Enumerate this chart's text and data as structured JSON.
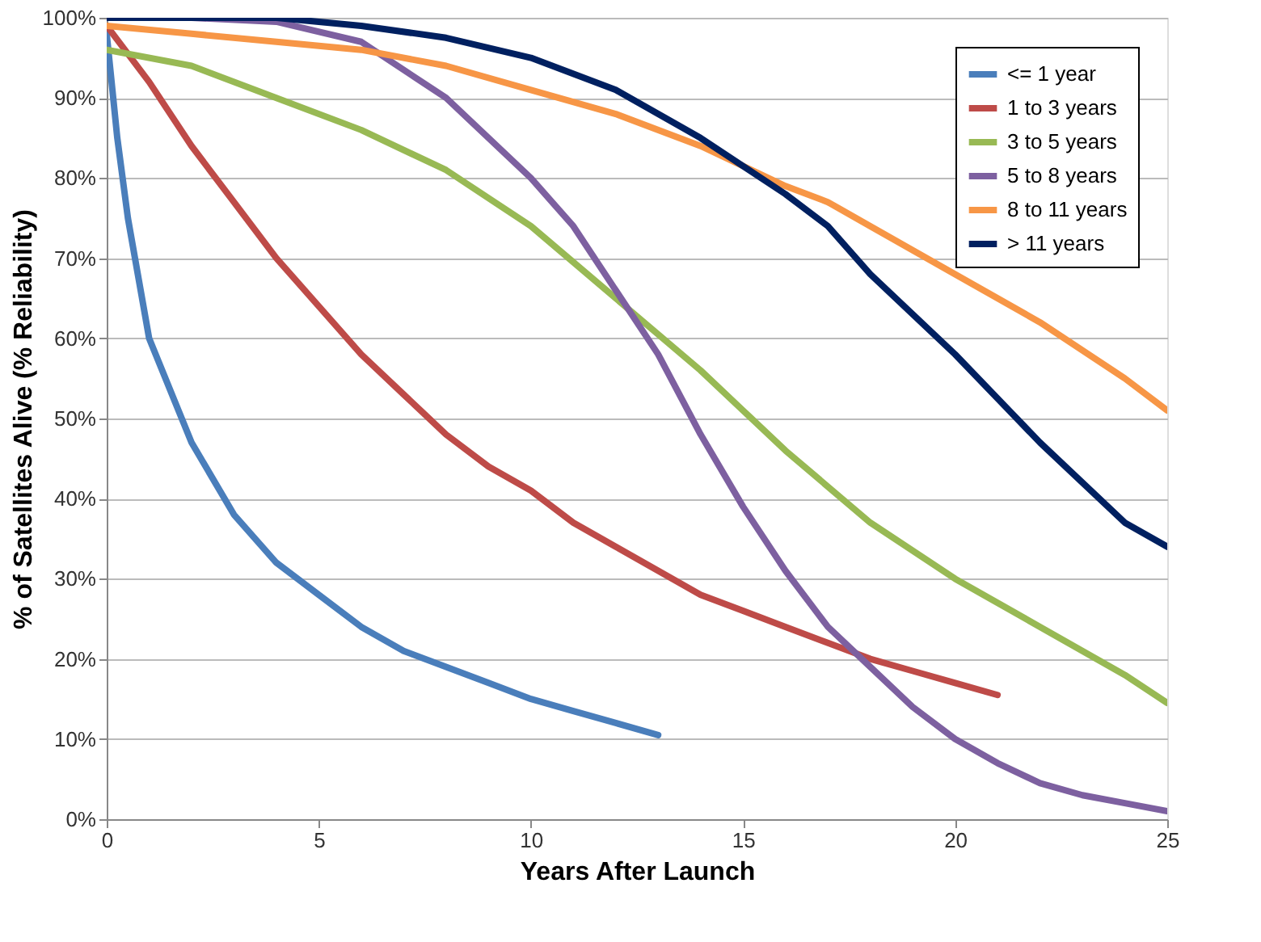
{
  "chart_data": {
    "type": "line",
    "xlabel": "Years After Launch",
    "ylabel": "% of Satellites Alive (% Reliability)",
    "xlim": [
      0,
      25
    ],
    "xticks": [
      0,
      5,
      10,
      15,
      20,
      25
    ],
    "ylim": [
      0,
      100
    ],
    "yticks": [
      {
        "value": 0,
        "label": "0%"
      },
      {
        "value": 10,
        "label": "10%"
      },
      {
        "value": 20,
        "label": "20%"
      },
      {
        "value": 30,
        "label": "30%"
      },
      {
        "value": 40,
        "label": "40%"
      },
      {
        "value": 50,
        "label": "50%"
      },
      {
        "value": 60,
        "label": "60%"
      },
      {
        "value": 70,
        "label": "70%"
      },
      {
        "value": 80,
        "label": "80%"
      },
      {
        "value": 90,
        "label": "90%"
      },
      {
        "value": 100,
        "label": "100%"
      }
    ],
    "grid": "y",
    "legend": "top right",
    "marker": "none",
    "line_style": "solid",
    "series": [
      {
        "name": "<= 1 year",
        "color": "#4a7ebb",
        "x": [
          0,
          0.25,
          0.5,
          1,
          2,
          3,
          4,
          5,
          6,
          7,
          8,
          9,
          10,
          11,
          12,
          13
        ],
        "values": [
          98,
          85,
          75,
          60,
          47,
          38,
          32,
          28,
          24,
          21,
          19,
          17,
          15,
          13.5,
          12,
          10.5
        ]
      },
      {
        "name": "1 to 3 years",
        "color": "#be4b48",
        "x": [
          0,
          1,
          2,
          3,
          4,
          5,
          6,
          7,
          8,
          9,
          10,
          11,
          12,
          13,
          14,
          15,
          16,
          17,
          18,
          19,
          20,
          21
        ],
        "values": [
          99,
          92,
          84,
          77,
          70,
          64,
          58,
          53,
          48,
          44,
          41,
          37,
          34,
          31,
          28,
          26,
          24,
          22,
          20,
          18.5,
          17,
          15.5
        ]
      },
      {
        "name": "3 to 5 years",
        "color": "#98b954",
        "x": [
          0,
          2,
          4,
          6,
          8,
          10,
          12,
          14,
          15,
          16,
          18,
          20,
          22,
          24,
          25
        ],
        "values": [
          96,
          94,
          90,
          86,
          81,
          74,
          65,
          56,
          51,
          46,
          37,
          30,
          24,
          18,
          14.5
        ]
      },
      {
        "name": "5 to 8 years",
        "color": "#7d60a0",
        "x": [
          0,
          2,
          4,
          6,
          8,
          10,
          11,
          12,
          13,
          14,
          15,
          16,
          17,
          18,
          19,
          20,
          21,
          22,
          23,
          24,
          25
        ],
        "values": [
          100,
          100,
          99.5,
          97,
          90,
          80,
          74,
          66,
          58,
          48,
          39,
          31,
          24,
          19,
          14,
          10,
          7,
          4.5,
          3,
          2,
          1
        ]
      },
      {
        "name": "8 to 11 years",
        "color": "#f79646",
        "x": [
          0,
          2,
          4,
          6,
          8,
          10,
          12,
          14,
          16,
          17,
          18,
          20,
          22,
          24,
          25
        ],
        "values": [
          99,
          98,
          97,
          96,
          94,
          91,
          88,
          84,
          79,
          77,
          74,
          68,
          62,
          55,
          51
        ]
      },
      {
        "name": "> 11 years",
        "color": "#002060",
        "x": [
          0,
          4,
          6,
          8,
          10,
          12,
          14,
          16,
          17,
          18,
          20,
          22,
          24,
          25
        ],
        "values": [
          100,
          100,
          99,
          97.5,
          95,
          91,
          85,
          78,
          74,
          68,
          58,
          47,
          37,
          34
        ]
      }
    ]
  }
}
